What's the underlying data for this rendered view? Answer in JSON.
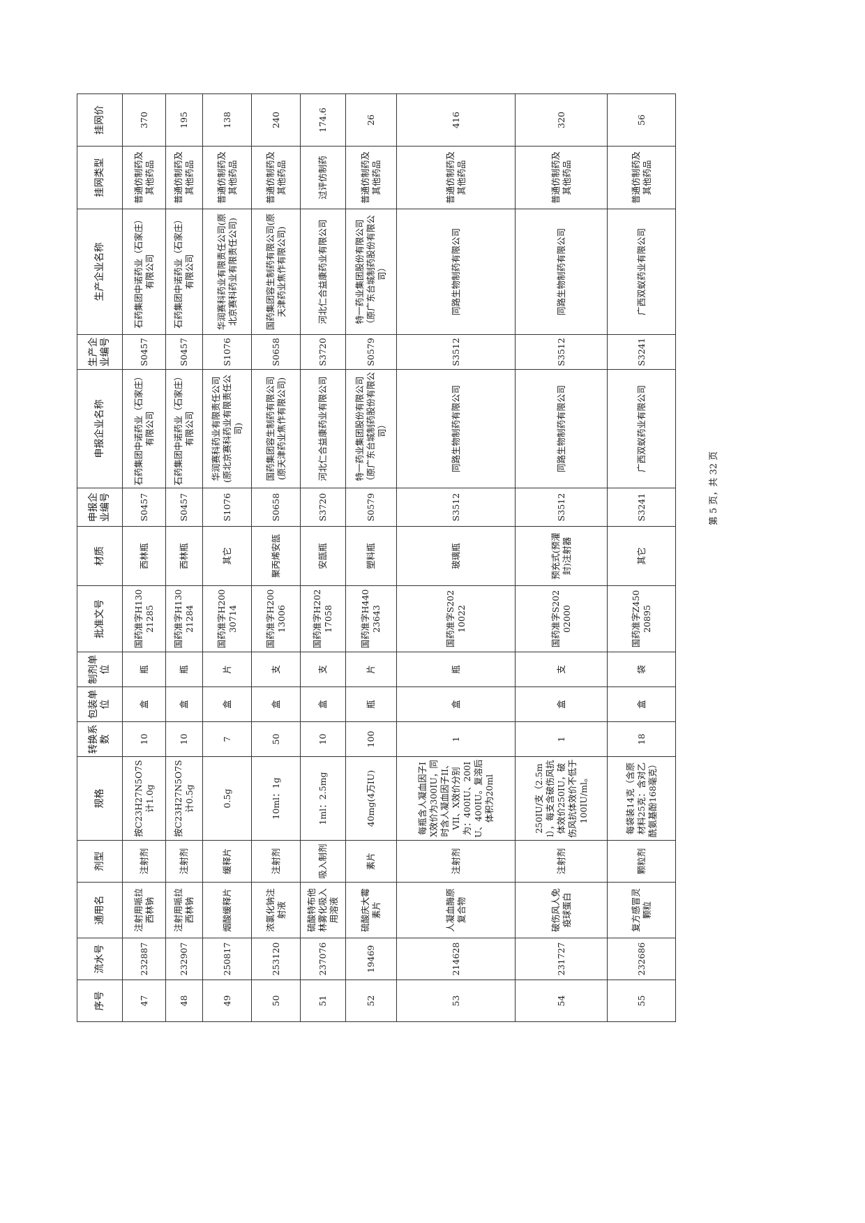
{
  "table": {
    "headers": [
      "序号",
      "流水号",
      "通用名",
      "剂型",
      "规格",
      "转换系数",
      "包装单位",
      "制剂单位",
      "批准文号",
      "材质",
      "申报企业编号",
      "申报企业名称",
      "生产企业编号",
      "生产企业名称",
      "挂网类型",
      "挂网价"
    ],
    "rows": [
      [
        "47",
        "232887",
        "注射用哌拉西林钠",
        "注射剂",
        "按C23H27N5O7S计1.0g",
        "10",
        "盒",
        "瓶",
        "国药准字H13021285",
        "西林瓶",
        "S0457",
        "石药集团中诺药业（石家庄）有限公司",
        "S0457",
        "石药集团中诺药业（石家庄）有限公司",
        "普通仿制药及其他药品",
        "370"
      ],
      [
        "48",
        "232907",
        "注射用哌拉西林钠",
        "注射剂",
        "按C23H27N5O7S计0.5g",
        "10",
        "盒",
        "瓶",
        "国药准字H13021284",
        "西林瓶",
        "S0457",
        "石药集团中诺药业（石家庄）有限公司",
        "S0457",
        "石药集团中诺药业（石家庄）有限公司",
        "普通仿制药及其他药品",
        "195"
      ],
      [
        "49",
        "250817",
        "烟酸缓释片",
        "缓释片",
        "0.5g",
        "7",
        "盒",
        "片",
        "国药准字H20030714",
        "其它",
        "S1076",
        "华润赛科药业有限责任公司(原北京赛科药业有限责任公司)",
        "S1076",
        "华润赛科药业有限责任公司(原北京赛科药业有限责任公司)",
        "普通仿制药及其他药品",
        "138"
      ],
      [
        "50",
        "253120",
        "浓氯化钠注射液",
        "注射剂",
        "10ml：1g",
        "50",
        "盒",
        "支",
        "国药准字H20013006",
        "聚丙烯安瓿",
        "S0658",
        "国药集团容生制药有限公司(原天津药业焦作有限公司)",
        "S0658",
        "国药集团容生制药有限公司(原天津药业焦作有限公司)",
        "普通仿制药及其他药品",
        "240"
      ],
      [
        "51",
        "237076",
        "硫酸特布他林雾化吸入用溶液",
        "吸入制剂",
        "1ml：2.5mg",
        "10",
        "盒",
        "支",
        "国药准字H20217058",
        "安瓿瓶",
        "S3720",
        "河北仁合益康药业有限公司",
        "S3720",
        "河北仁合益康药业有限公司",
        "过评仿制药",
        "174.6"
      ],
      [
        "52",
        "19469",
        "硫酸庆大霉素片",
        "素片",
        "40mg(4万IU)",
        "100",
        "瓶",
        "片",
        "国药准字H44023643",
        "塑料瓶",
        "S0579",
        "特一药业集团股份有限公司（原广东台城制药股份有限公司）",
        "S0579",
        "特一药业集团股份有限公司（原广东台城制药股份有限公司）",
        "普通仿制药及其他药品",
        "26"
      ],
      [
        "53",
        "214628",
        "人凝血酶原复合物",
        "注射剂",
        "每瓶含人凝血因子IX效价为300IU，同时含人凝血因子II、VII、X效价分别为：400IU、200IU、400IU。复溶后体积为20ml",
        "1",
        "盒",
        "瓶",
        "国药准字S20210022",
        "玻璃瓶",
        "S3512",
        "同路生物制药有限公司",
        "S3512",
        "同路生物制药有限公司",
        "普通仿制药及其他药品",
        "416"
      ],
      [
        "54",
        "231727",
        "破伤风人免疫球蛋白",
        "注射剂",
        "250IU/支（2.5ml），每支含破伤风抗体效价250IU，破伤风抗体效价不低于100IU/ml。",
        "1",
        "盒",
        "支",
        "国药准字S20202000",
        "预充式(预灌封)注射器",
        "S3512",
        "同路生物制药有限公司",
        "S3512",
        "同路生物制药有限公司",
        "普通仿制药及其他药品",
        "320"
      ],
      [
        "55",
        "232686",
        "复方感冒灵颗粒",
        "颗粒剂",
        "每袋装14克（含原材料25克：含对乙酰氨基酚168毫克）",
        "18",
        "盒",
        "袋",
        "国药准字Z45020895",
        "其它",
        "S3241",
        "广西双蚁药业有限公司",
        "S3241",
        "广西双蚁药业有限公司",
        "普通仿制药及其他药品",
        "56"
      ]
    ]
  },
  "footer": {
    "page_label": "第 5 页，共 32 页"
  }
}
